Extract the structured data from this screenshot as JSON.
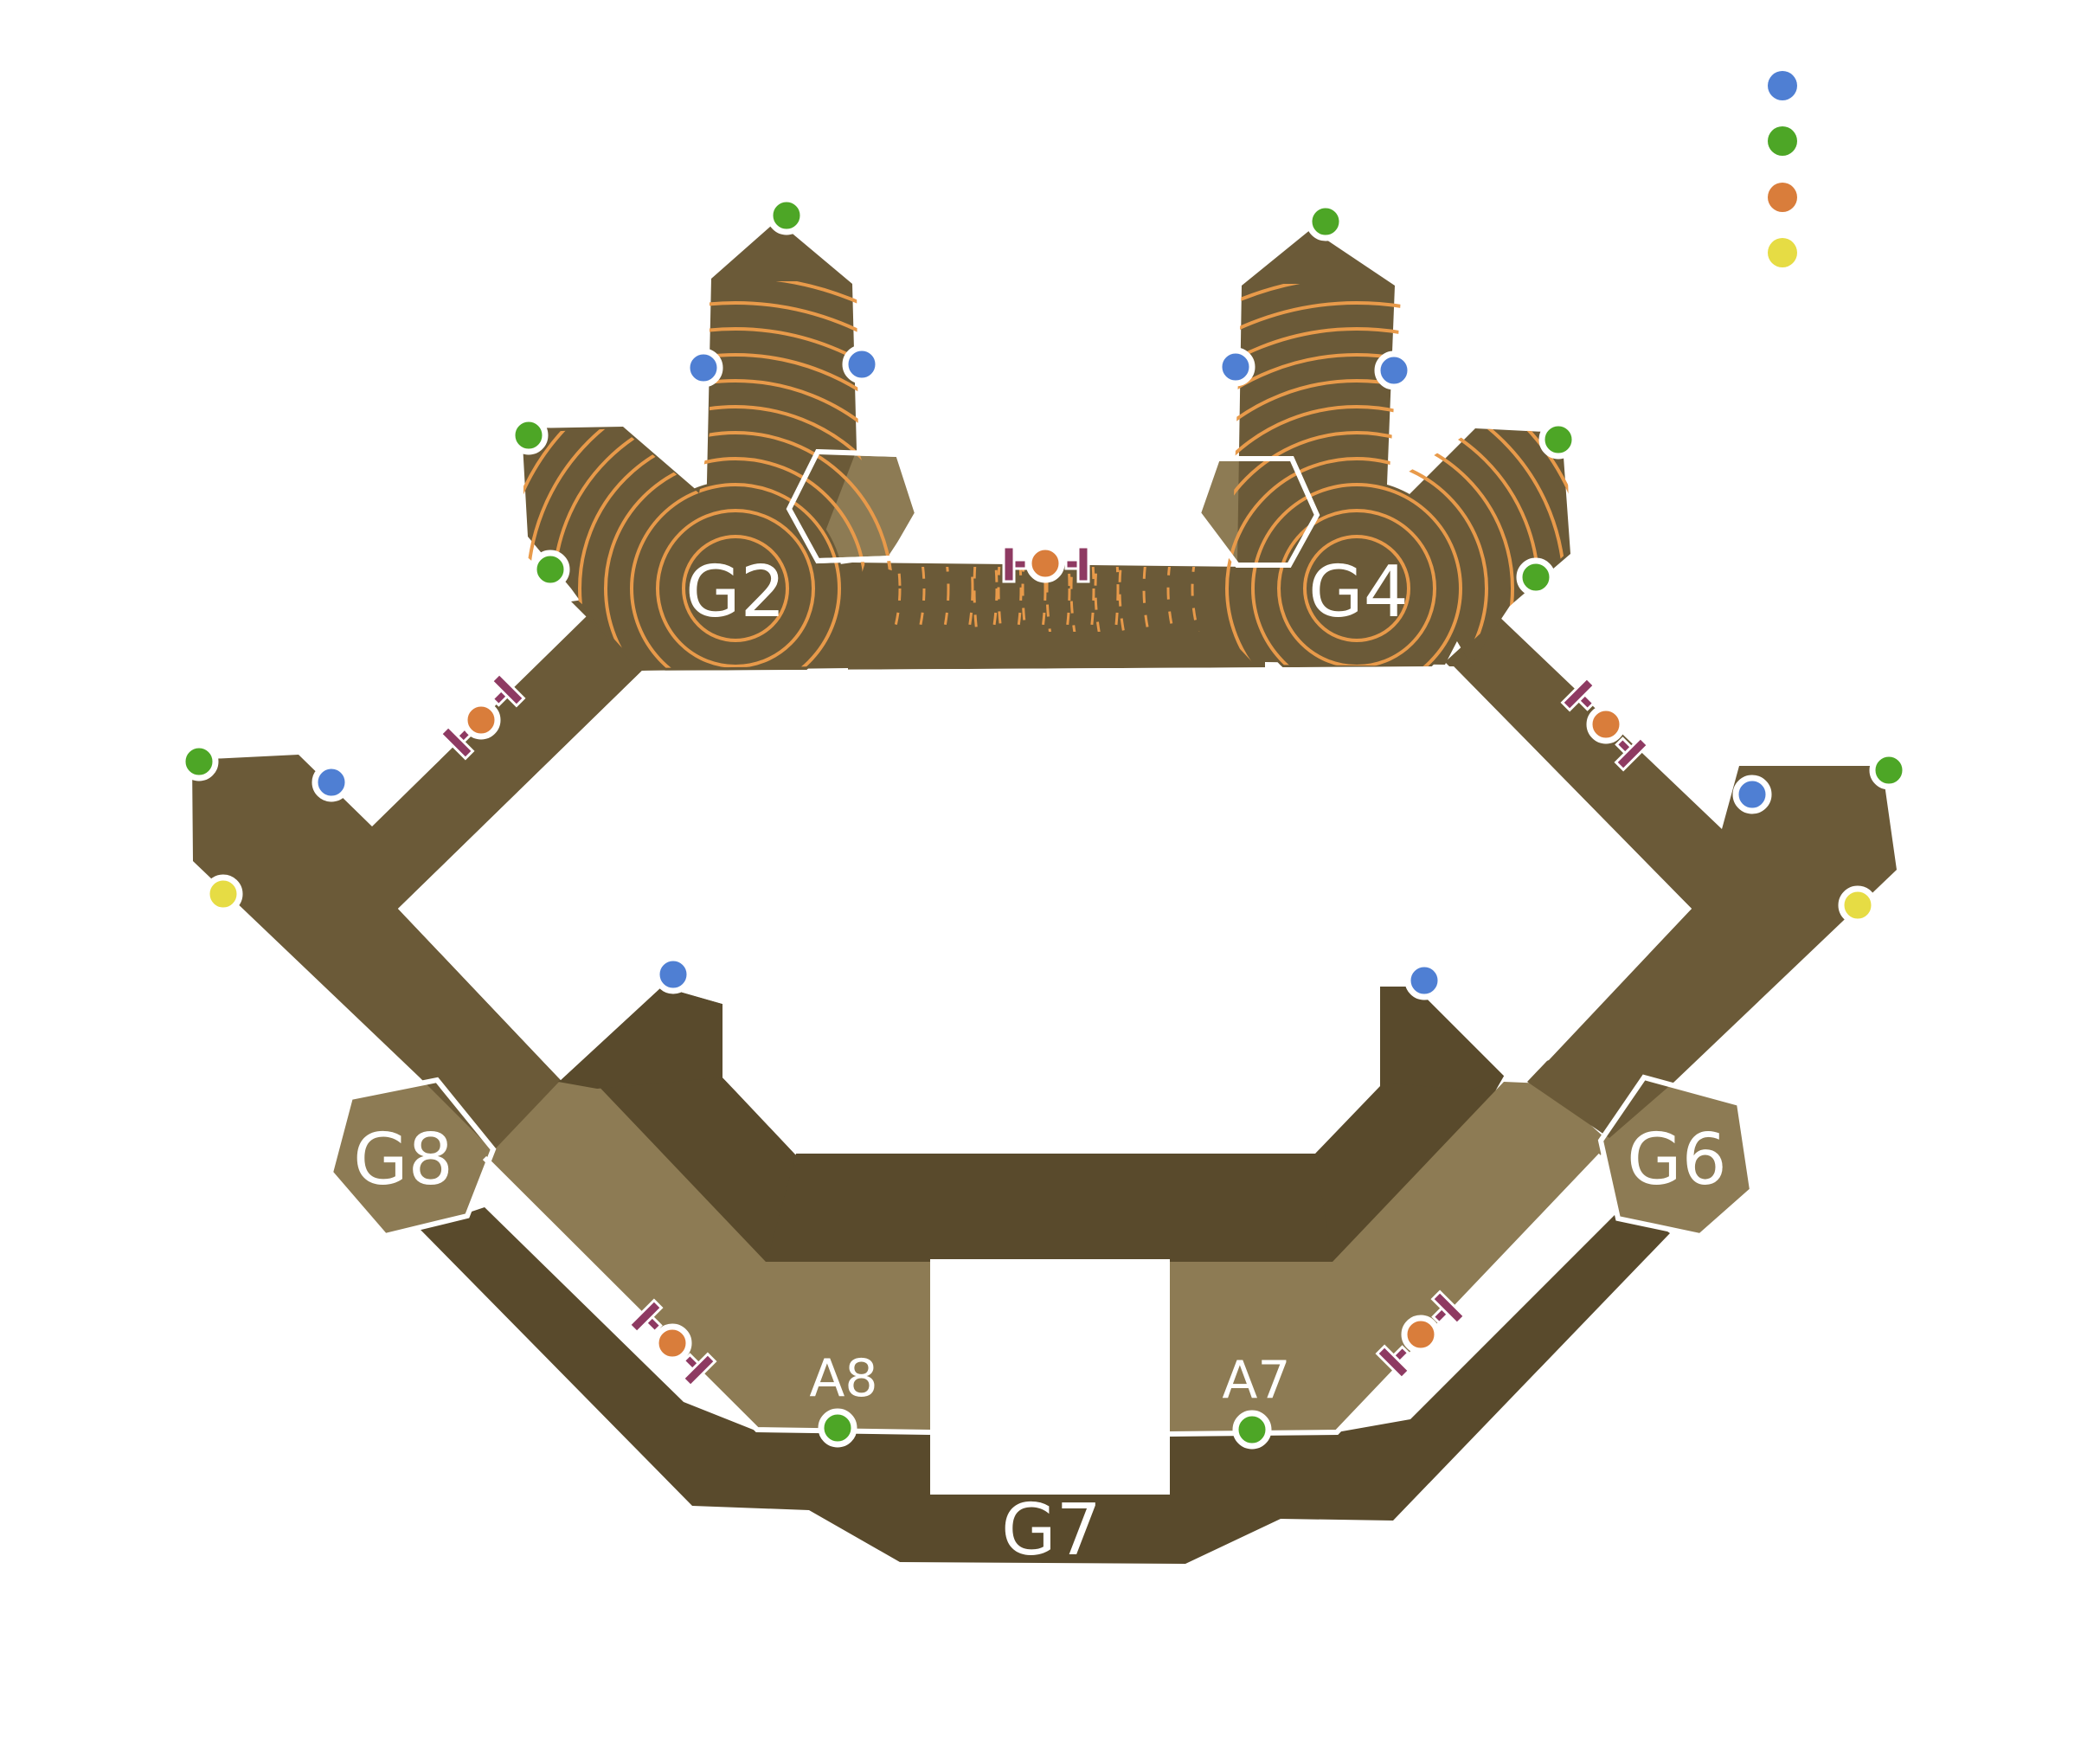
{
  "labels": {
    "g2": "G2",
    "g4": "G4",
    "g6": "G6",
    "g7": "G7",
    "g8": "G8",
    "a7": "A7",
    "a8": "A8"
  },
  "colors": {
    "upper_floor": "#6b5a38",
    "lower_floor": "#594a2c",
    "ramp": "#8d7b54",
    "ring": "#e89a4a",
    "door": "#8e3a62",
    "marker_blue": "#4f7fd3",
    "marker_green": "#4da626",
    "marker_orange": "#d97d3b",
    "marker_yellow": "#e6dc44",
    "outline": "#ffffff"
  },
  "legend": [
    {
      "color": "blue"
    },
    {
      "color": "green"
    },
    {
      "color": "orange"
    },
    {
      "color": "yellow"
    }
  ]
}
